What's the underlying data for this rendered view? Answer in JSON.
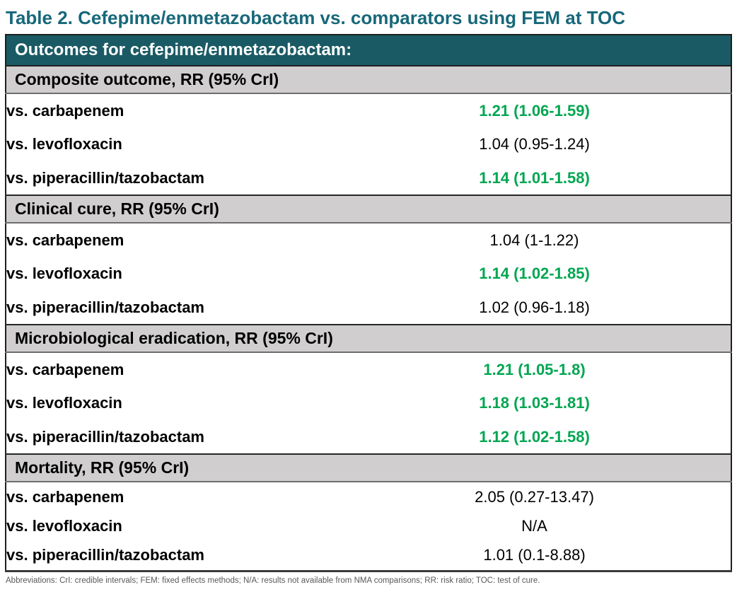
{
  "title": "Table 2. Cefepime/enmetazobactam vs. comparators using FEM at TOC",
  "table": {
    "header": "Outcomes for cefepime/enmetazobactam:",
    "sections": [
      {
        "label": "Composite outcome, RR (95% CrI)",
        "rows": [
          {
            "comparator": "vs. carbapenem",
            "value": "1.21 (1.06-1.59)",
            "significant": true
          },
          {
            "comparator": "vs. levofloxacin",
            "value": "1.04 (0.95-1.24)",
            "significant": false
          },
          {
            "comparator": "vs. piperacillin/tazobactam",
            "value": "1.14 (1.01-1.58)",
            "significant": true
          }
        ]
      },
      {
        "label": "Clinical cure, RR (95% CrI)",
        "rows": [
          {
            "comparator": "vs. carbapenem",
            "value": "1.04 (1-1.22)",
            "significant": false
          },
          {
            "comparator": "vs. levofloxacin",
            "value": "1.14 (1.02-1.85)",
            "significant": true
          },
          {
            "comparator": "vs. piperacillin/tazobactam",
            "value": "1.02 (0.96-1.18)",
            "significant": false
          }
        ]
      },
      {
        "label": "Microbiological eradication, RR (95% CrI)",
        "rows": [
          {
            "comparator": "vs. carbapenem",
            "value": "1.21 (1.05-1.8)",
            "significant": true
          },
          {
            "comparator": "vs. levofloxacin",
            "value": "1.18 (1.03-1.81)",
            "significant": true
          },
          {
            "comparator": "vs. piperacillin/tazobactam",
            "value": "1.12 (1.02-1.58)",
            "significant": true
          }
        ]
      },
      {
        "label": "Mortality, RR (95% CrI)",
        "rows": [
          {
            "comparator": "vs. carbapenem",
            "value": "2.05 (0.27-13.47)",
            "significant": false
          },
          {
            "comparator": "vs. levofloxacin",
            "value": "N/A",
            "significant": false
          },
          {
            "comparator": "vs. piperacillin/tazobactam",
            "value": "1.01 (0.1-8.88)",
            "significant": false
          }
        ]
      }
    ]
  },
  "footnote": "Abbreviations: CrI: credible intervals; FEM: fixed effects methods; N/A: results not available from NMA comparisons; RR: risk ratio; TOC: test of cure.",
  "colors": {
    "title_teal": "#17687A",
    "teal_band": "#1A5A64",
    "teal_band_text": "#FFFFFF",
    "section_gray": "#D0CECE",
    "highlight_green": "#00A651",
    "body_text": "#000000",
    "footnote_gray": "#595959"
  }
}
